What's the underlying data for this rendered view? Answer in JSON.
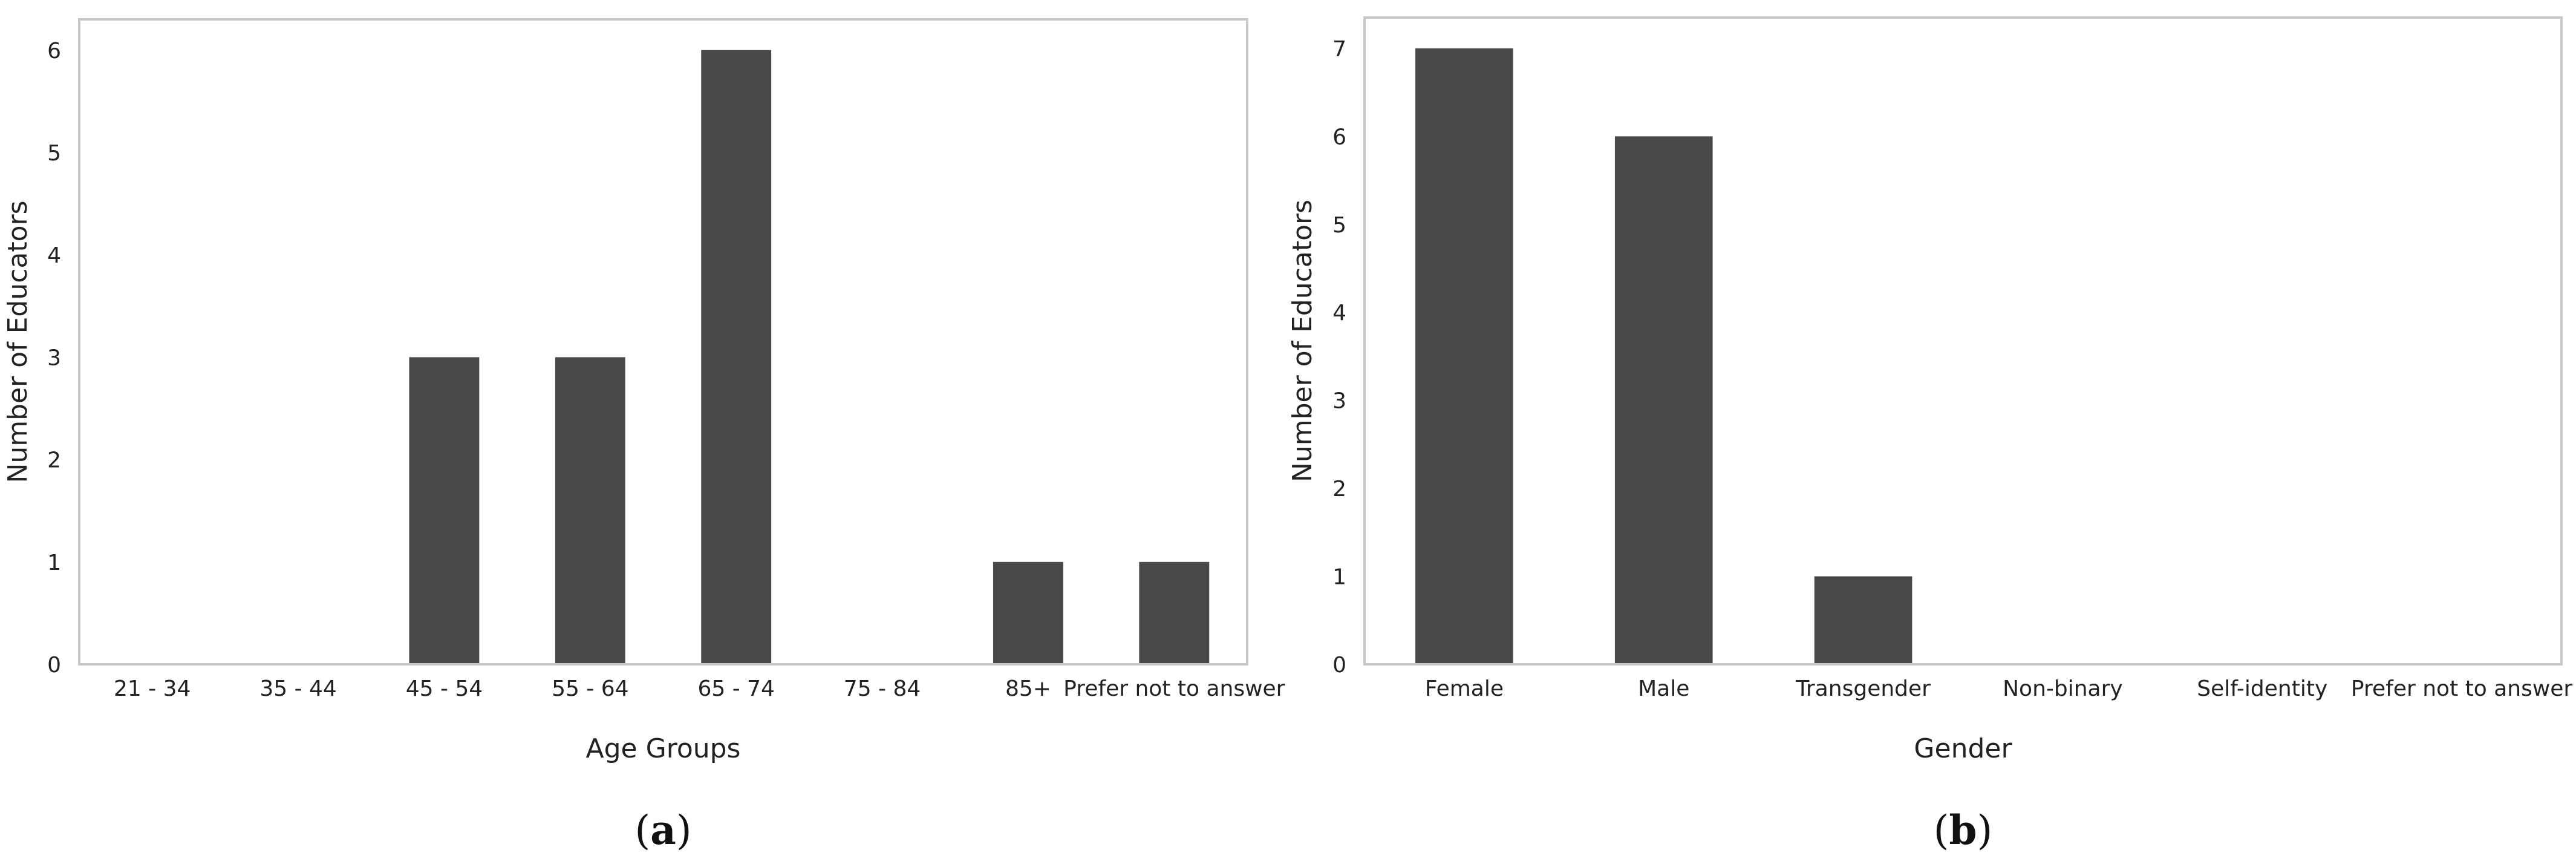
{
  "colors": {
    "bar": "#484848",
    "frame": "#c8c8c8",
    "text": "#222222"
  },
  "chart_data": [
    {
      "type": "bar",
      "panel_label": "(a)",
      "panel_letter": "a",
      "categories": [
        "21 - 34",
        "35 - 44",
        "45 - 54",
        "55 - 64",
        "65 - 74",
        "75 - 84",
        "85+",
        "Prefer not to answer"
      ],
      "values": [
        0,
        0,
        3,
        3,
        6,
        0,
        1,
        1
      ],
      "xlabel": "Age Groups",
      "ylabel": "Number of Educators",
      "yticks": [
        0,
        1,
        2,
        3,
        4,
        5,
        6
      ],
      "ylim": [
        0,
        6.3
      ],
      "grid": false,
      "legend": "none"
    },
    {
      "type": "bar",
      "panel_label": "(b)",
      "panel_letter": "b",
      "categories": [
        "Female",
        "Male",
        "Transgender",
        "Non-binary",
        "Self-identity",
        "Prefer not to answer"
      ],
      "values": [
        7,
        6,
        1,
        0,
        0,
        0
      ],
      "xlabel": "Gender",
      "ylabel": "Number of Educators",
      "yticks": [
        0,
        1,
        2,
        3,
        4,
        5,
        6,
        7
      ],
      "ylim": [
        0,
        7.35
      ],
      "grid": false,
      "legend": "none"
    }
  ]
}
